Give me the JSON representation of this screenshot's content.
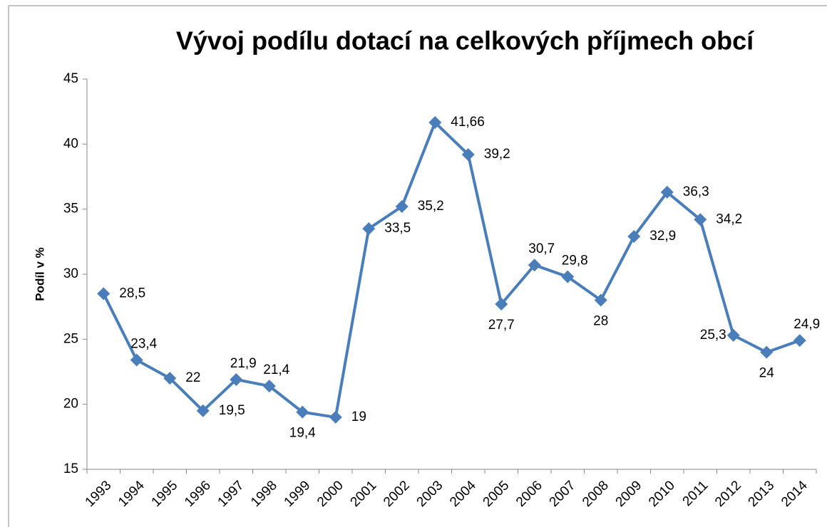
{
  "chart_data": {
    "type": "line",
    "title": "Vývoj podílu dotací na celkových příjmech obcí",
    "y_label": "Podíl v %",
    "categories": [
      "1993",
      "1994",
      "1995",
      "1996",
      "1997",
      "1998",
      "1999",
      "2000",
      "2001",
      "2002",
      "2003",
      "2004",
      "2005",
      "2006",
      "2007",
      "2008",
      "2009",
      "2010",
      "2011",
      "2012",
      "2013",
      "2014"
    ],
    "series": [
      {
        "name": "Podíl v %",
        "color": "#4a7ebb",
        "values": [
          28.5,
          23.4,
          22,
          19.5,
          21.9,
          21.4,
          19.4,
          19,
          33.5,
          35.2,
          41.66,
          39.2,
          27.7,
          30.7,
          29.8,
          28,
          32.9,
          36.3,
          34.2,
          25.3,
          24,
          24.9
        ],
        "value_labels": [
          "28,5",
          "23,4",
          "22",
          "19,5",
          "21,9",
          "21,4",
          "19,4",
          "19",
          "33,5",
          "35,2",
          "41,66",
          "39,2",
          "27,7",
          "30,7",
          "29,8",
          "28",
          "32,9",
          "36,3",
          "34,2",
          "25,3",
          "24",
          "24,9"
        ]
      }
    ],
    "ylim": [
      15,
      45
    ],
    "yticks": [
      15,
      20,
      25,
      30,
      35,
      40,
      45
    ],
    "grid": false
  }
}
